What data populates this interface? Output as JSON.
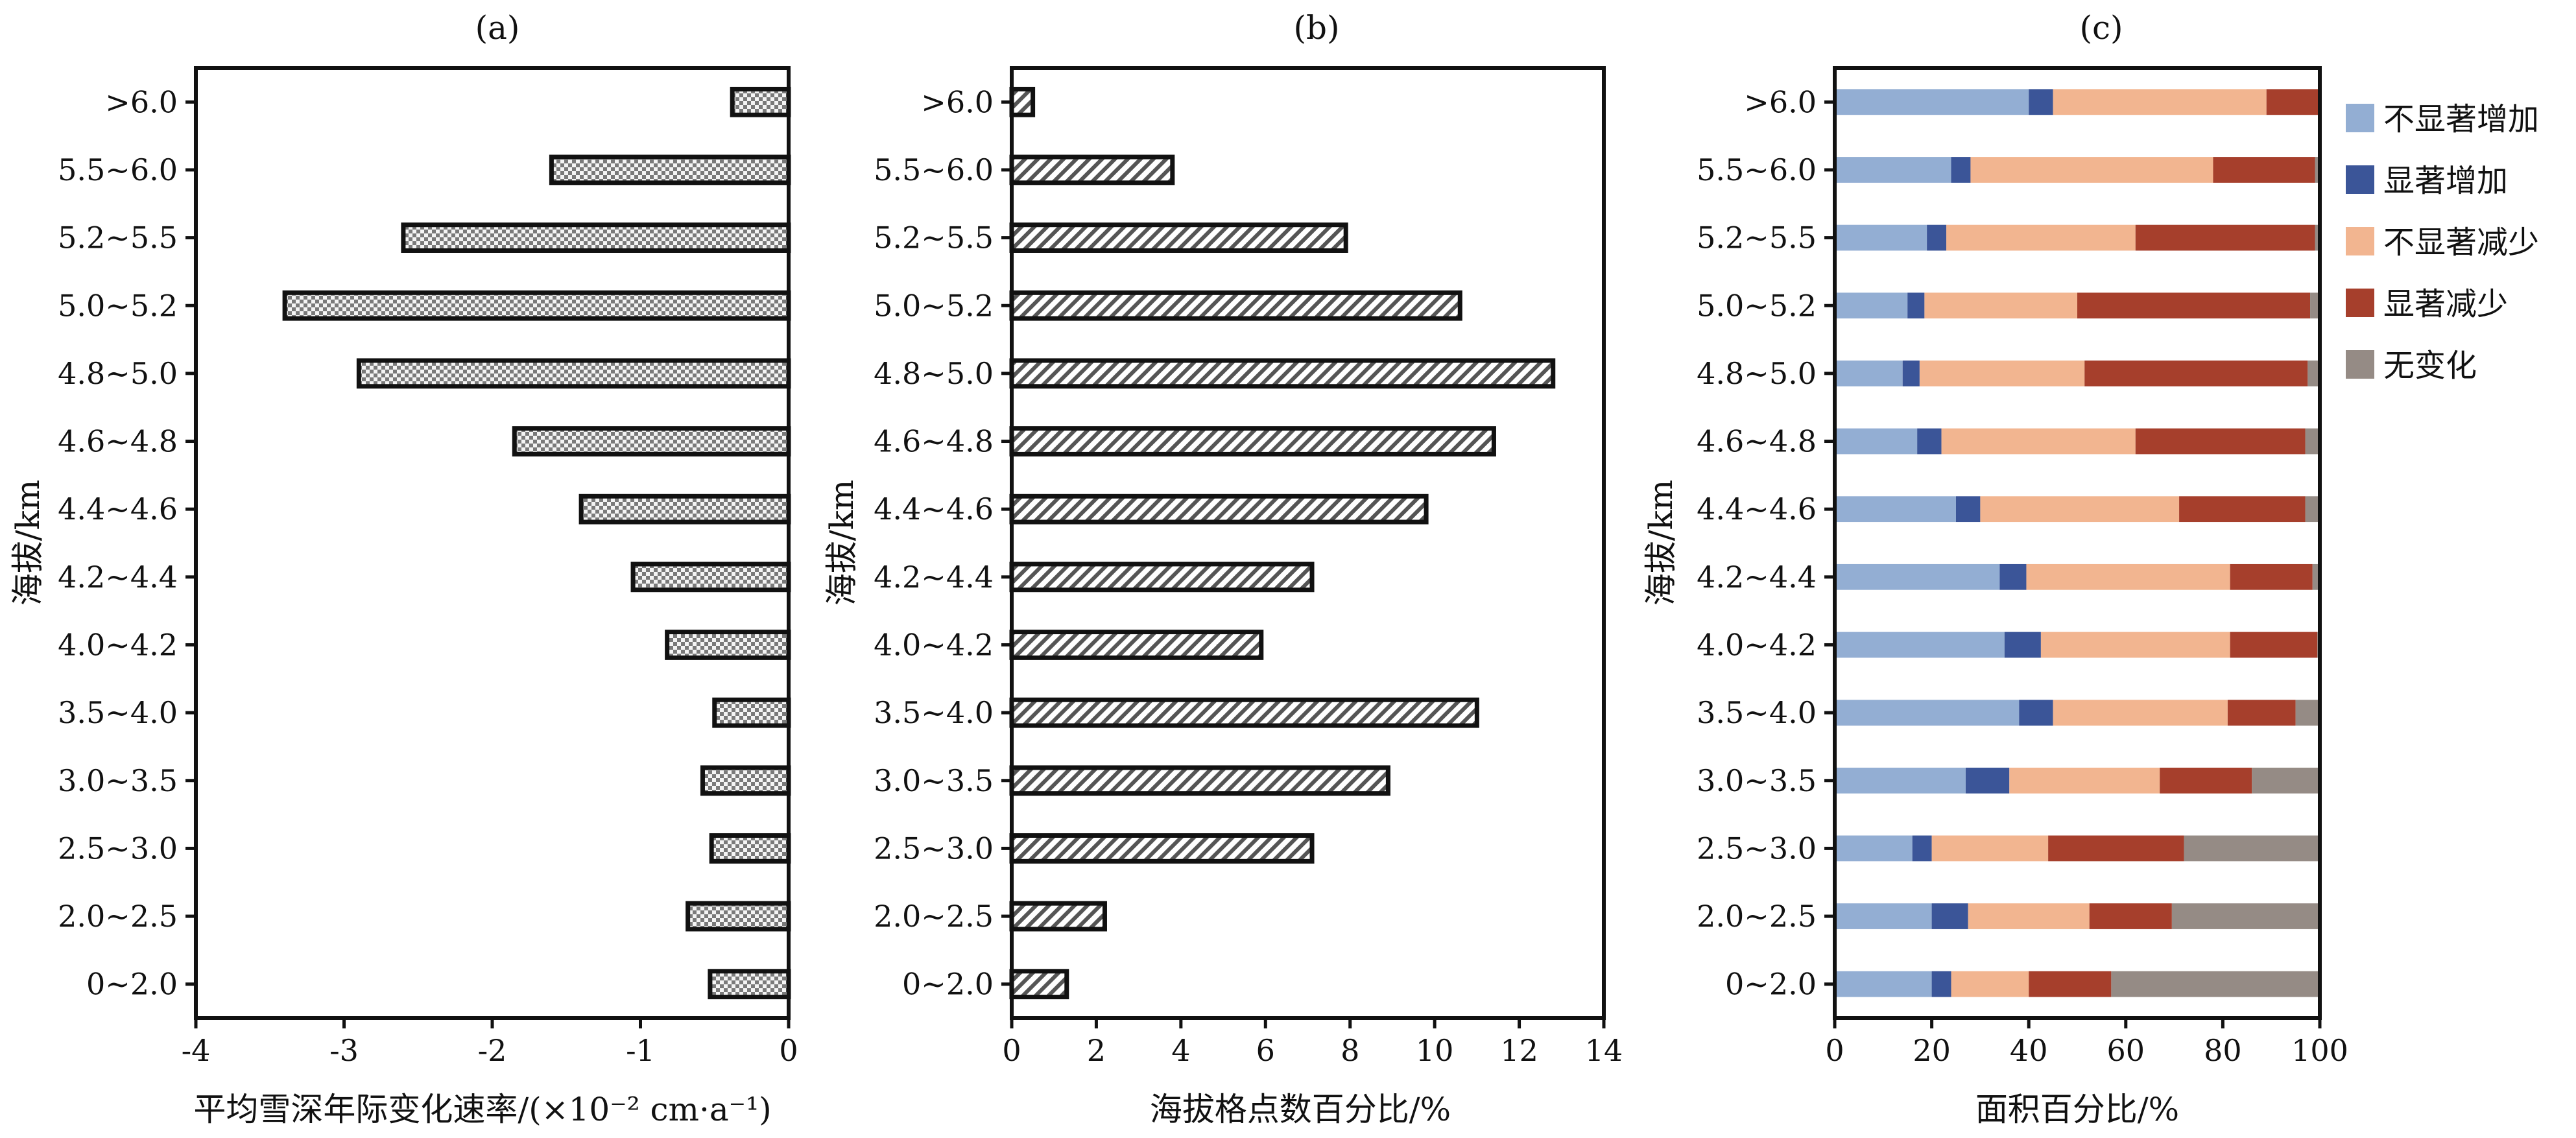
{
  "chart_data": [
    {
      "type": "bar",
      "orientation": "horizontal",
      "panel_label": "(a)",
      "ylabel": "海拔/km",
      "xlabel": "平均雪深年际变化速率/(×10⁻² cm·a⁻¹)",
      "categories": [
        ">6.0",
        "5.5~6.0",
        "5.2~5.5",
        "5.0~5.2",
        "4.8~5.0",
        "4.6~4.8",
        "4.4~4.6",
        "4.2~4.4",
        "4.0~4.2",
        "3.5~4.0",
        "3.0~3.5",
        "2.5~3.0",
        "2.0~2.5",
        "0~2.0"
      ],
      "values": [
        -0.38,
        -1.6,
        -2.6,
        -3.4,
        -2.9,
        -1.85,
        -1.4,
        -1.05,
        -0.82,
        -0.5,
        -0.58,
        -0.52,
        -0.68,
        -0.53
      ],
      "xlim": [
        -4,
        0
      ],
      "xticks": [
        "-4",
        "-3",
        "-2",
        "-1",
        "0"
      ],
      "fill": "crosshatch"
    },
    {
      "type": "bar",
      "orientation": "horizontal",
      "panel_label": "(b)",
      "ylabel": "海拔/km",
      "xlabel": "海拔格点数百分比/%",
      "categories": [
        ">6.0",
        "5.5~6.0",
        "5.2~5.5",
        "5.0~5.2",
        "4.8~5.0",
        "4.6~4.8",
        "4.4~4.6",
        "4.2~4.4",
        "4.0~4.2",
        "3.5~4.0",
        "3.0~3.5",
        "2.5~3.0",
        "2.0~2.5",
        "0~2.0"
      ],
      "values": [
        0.5,
        3.8,
        7.9,
        10.6,
        12.8,
        11.4,
        9.8,
        7.1,
        5.9,
        11.0,
        8.9,
        7.1,
        2.2,
        1.3
      ],
      "xlim": [
        0,
        14
      ],
      "xticks": [
        "0",
        "2",
        "4",
        "6",
        "8",
        "10",
        "12",
        "14"
      ],
      "fill": "diagonal-hatch"
    },
    {
      "type": "bar",
      "orientation": "horizontal",
      "stacked": true,
      "panel_label": "(c)",
      "ylabel": "海拔/km",
      "xlabel": "面积百分比/%",
      "categories": [
        ">6.0",
        "5.5~6.0",
        "5.2~5.5",
        "5.0~5.2",
        "4.8~5.0",
        "4.6~4.8",
        "4.4~4.6",
        "4.2~4.4",
        "4.0~4.2",
        "3.5~4.0",
        "3.0~3.5",
        "2.5~3.0",
        "2.0~2.5",
        "0~2.0"
      ],
      "xlim": [
        0,
        100
      ],
      "xticks": [
        "0",
        "20",
        "40",
        "60",
        "80",
        "100"
      ],
      "legend_position": "right",
      "series": [
        {
          "name": "不显著增加",
          "color": "#93aed3",
          "values": [
            40,
            24,
            19,
            15,
            14,
            17,
            25,
            34,
            35,
            38,
            27,
            16,
            20,
            20
          ]
        },
        {
          "name": "显著增加",
          "color": "#3b5598",
          "values": [
            5,
            4,
            4,
            3.5,
            3.5,
            5,
            5,
            5.5,
            7.5,
            7,
            9,
            4,
            7.5,
            4
          ]
        },
        {
          "name": "不显著减少",
          "color": "#f2b590",
          "values": [
            44,
            50,
            39,
            31.5,
            34,
            40,
            41,
            42,
            39,
            36,
            31,
            24,
            25,
            16
          ]
        },
        {
          "name": "显著减少",
          "color": "#a63f2c",
          "values": [
            11,
            21,
            37,
            48,
            46,
            35,
            26,
            17,
            18,
            14,
            19,
            28,
            17,
            17
          ]
        },
        {
          "name": "无变化",
          "color": "#958b85",
          "values": [
            0,
            1,
            1,
            2,
            2.5,
            3,
            3,
            1.5,
            0.5,
            5,
            14,
            28,
            30.5,
            43
          ]
        }
      ]
    }
  ]
}
